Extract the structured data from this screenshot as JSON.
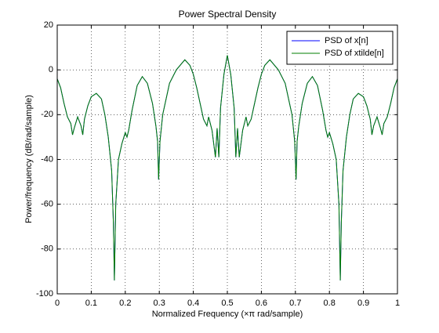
{
  "chart_data": {
    "type": "line",
    "title": "Power Spectral Density",
    "xlabel": "Normalized Frequency (×π rad/sample)",
    "ylabel": "Power/frequency (dB/rad/sample)",
    "x": [
      0,
      0.01,
      0.02,
      0.03,
      0.04,
      0.045,
      0.05,
      0.06,
      0.07,
      0.075,
      0.08,
      0.09,
      0.1,
      0.115,
      0.13,
      0.14,
      0.15,
      0.16,
      0.165,
      0.168,
      0.172,
      0.18,
      0.19,
      0.2,
      0.205,
      0.21,
      0.22,
      0.235,
      0.25,
      0.265,
      0.28,
      0.29,
      0.295,
      0.298,
      0.302,
      0.31,
      0.33,
      0.35,
      0.375,
      0.39,
      0.4,
      0.41,
      0.42,
      0.43,
      0.44,
      0.445,
      0.455,
      0.465,
      0.47,
      0.475,
      0.48,
      0.49,
      0.5,
      0.51,
      0.52,
      0.525,
      0.53,
      0.535,
      0.545,
      0.555,
      0.56,
      0.57,
      0.58,
      0.59,
      0.6,
      0.61,
      0.625,
      0.65,
      0.67,
      0.69,
      0.698,
      0.702,
      0.705,
      0.71,
      0.72,
      0.735,
      0.75,
      0.765,
      0.78,
      0.79,
      0.795,
      0.8,
      0.81,
      0.82,
      0.828,
      0.832,
      0.835,
      0.84,
      0.85,
      0.86,
      0.87,
      0.885,
      0.9,
      0.91,
      0.92,
      0.925,
      0.93,
      0.94,
      0.95,
      0.955,
      0.96,
      0.97,
      0.98,
      0.99,
      1
    ],
    "series": [
      {
        "name": "PSD of x[n]",
        "color": "#0000ff",
        "values": [
          -4,
          -8,
          -15,
          -21,
          -24,
          -29,
          -26,
          -21,
          -25,
          -29,
          -22,
          -16,
          -12,
          -10.5,
          -13,
          -20,
          -30,
          -45,
          -68,
          -94,
          -60,
          -40,
          -33,
          -28,
          -30,
          -27,
          -18,
          -7,
          -3,
          -6,
          -15,
          -25,
          -32,
          -49,
          -32,
          -20,
          -6,
          0,
          4.5,
          2,
          -2,
          -8,
          -15,
          -22,
          -25,
          -21,
          -27,
          -39,
          -26,
          -39,
          -17,
          -2,
          6.5,
          -2,
          -17,
          -39,
          -26,
          -39,
          -27,
          -21,
          -25,
          -22,
          -15,
          -8,
          -2,
          2,
          4.5,
          0,
          -6,
          -20,
          -32,
          -49,
          -32,
          -25,
          -15,
          -6,
          -3,
          -7,
          -18,
          -27,
          -30,
          -28,
          -33,
          -40,
          -60,
          -94,
          -68,
          -45,
          -30,
          -20,
          -13,
          -10.5,
          -12,
          -16,
          -22,
          -29,
          -25,
          -21,
          -26,
          -29,
          -24,
          -21,
          -15,
          -8,
          -4
        ]
      },
      {
        "name": "PSD of xtilde[n]",
        "color": "#007f00",
        "values": [
          -4,
          -8,
          -15,
          -21,
          -24,
          -29,
          -26,
          -21,
          -25,
          -29,
          -22,
          -16,
          -12,
          -10.5,
          -13,
          -20,
          -30,
          -45,
          -68,
          -94,
          -60,
          -40,
          -33,
          -28,
          -30,
          -27,
          -18,
          -7,
          -3,
          -6,
          -15,
          -25,
          -32,
          -49,
          -32,
          -20,
          -6,
          0,
          4.5,
          2,
          -2,
          -8,
          -15,
          -22,
          -25,
          -21,
          -27,
          -39,
          -26,
          -39,
          -17,
          -2,
          6.5,
          -2,
          -17,
          -39,
          -26,
          -39,
          -27,
          -21,
          -25,
          -22,
          -15,
          -8,
          -2,
          2,
          4.5,
          0,
          -6,
          -20,
          -32,
          -49,
          -32,
          -25,
          -15,
          -6,
          -3,
          -7,
          -18,
          -27,
          -30,
          -28,
          -33,
          -40,
          -60,
          -94,
          -68,
          -45,
          -30,
          -20,
          -13,
          -10.5,
          -12,
          -16,
          -22,
          -29,
          -25,
          -21,
          -26,
          -29,
          -24,
          -21,
          -15,
          -8,
          -4
        ]
      }
    ],
    "xlim": [
      0,
      1
    ],
    "xticks": [
      0,
      0.1,
      0.2,
      0.3,
      0.4,
      0.5,
      0.6,
      0.7,
      0.8,
      0.9,
      1
    ],
    "ylim": [
      -100,
      20
    ],
    "yticks": [
      -100,
      -80,
      -60,
      -40,
      -20,
      0,
      20
    ],
    "grid": true,
    "legend": "northeast"
  }
}
